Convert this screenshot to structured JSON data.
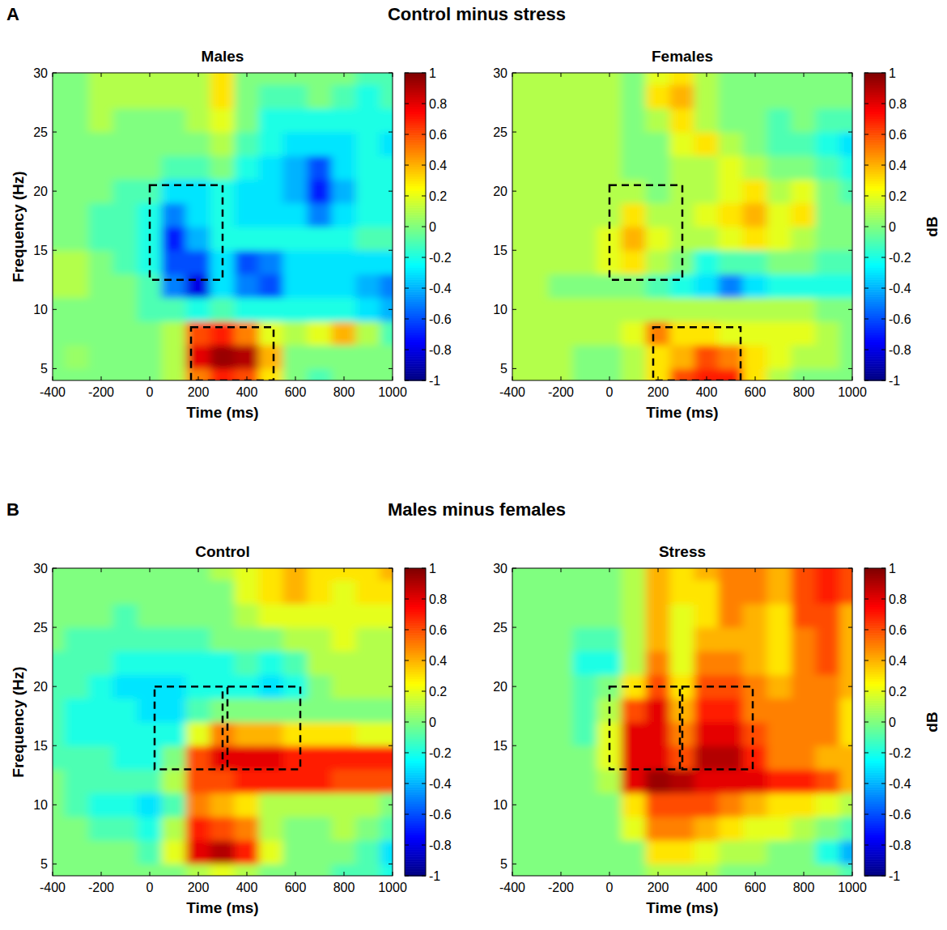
{
  "figure": {
    "rows": [
      {
        "letter": "A",
        "title": "Control minus stress"
      },
      {
        "letter": "B",
        "title": "Males minus females"
      }
    ]
  },
  "chart_data": [
    {
      "type": "heatmap",
      "title": "Males",
      "xlabel": "Time (ms)",
      "ylabel": "Frequency (Hz)",
      "xlim": [
        -400,
        1000
      ],
      "ylim": [
        4,
        30
      ],
      "xticks": [
        -400,
        -200,
        0,
        200,
        400,
        600,
        800,
        1000
      ],
      "yticks": [
        5,
        10,
        15,
        20,
        25,
        30
      ],
      "x": [
        -400,
        -300,
        -200,
        -100,
        0,
        100,
        200,
        300,
        400,
        500,
        600,
        700,
        800,
        900,
        1000
      ],
      "y": [
        4,
        6,
        8,
        10,
        12,
        14,
        16,
        18,
        20,
        22,
        24,
        26,
        28,
        30
      ],
      "z": [
        [
          0,
          0,
          0,
          0,
          0,
          0.1,
          0.5,
          0.7,
          0.6,
          0.3,
          0,
          -0.1,
          0,
          0,
          0
        ],
        [
          0,
          0.05,
          0,
          0,
          0,
          0.1,
          0.8,
          0.95,
          0.9,
          0.4,
          0,
          0,
          0,
          0,
          0
        ],
        [
          0,
          0,
          0,
          0,
          0,
          0.1,
          0.6,
          0.7,
          0.5,
          0.2,
          0.1,
          0.2,
          0.4,
          0.1,
          -0.1
        ],
        [
          0,
          0,
          0,
          0,
          -0.1,
          -0.1,
          -0.2,
          -0.1,
          -0.2,
          -0.2,
          -0.2,
          -0.2,
          -0.2,
          -0.3,
          -0.4
        ],
        [
          0.1,
          0.1,
          0,
          0,
          -0.1,
          -0.5,
          -0.8,
          -0.3,
          -0.5,
          -0.6,
          -0.3,
          -0.3,
          -0.3,
          -0.4,
          -0.5
        ],
        [
          0.1,
          0.1,
          0,
          -0.1,
          -0.2,
          -0.6,
          -0.6,
          -0.3,
          -0.6,
          -0.5,
          -0.3,
          -0.3,
          -0.3,
          -0.3,
          -0.3
        ],
        [
          0,
          0,
          -0.1,
          -0.1,
          -0.2,
          -0.7,
          -0.4,
          -0.2,
          -0.2,
          -0.2,
          -0.2,
          -0.2,
          -0.2,
          -0.1,
          -0.1
        ],
        [
          0,
          0,
          -0.1,
          -0.1,
          -0.2,
          -0.5,
          -0.3,
          -0.2,
          -0.3,
          -0.3,
          -0.3,
          -0.5,
          -0.3,
          -0.2,
          -0.2
        ],
        [
          0,
          0,
          0,
          -0.1,
          -0.1,
          -0.3,
          -0.3,
          -0.2,
          -0.3,
          -0.3,
          -0.4,
          -0.7,
          -0.4,
          -0.2,
          -0.2
        ],
        [
          0,
          0,
          0,
          0,
          0,
          -0.1,
          -0.1,
          0,
          -0.2,
          -0.3,
          -0.4,
          -0.6,
          -0.3,
          -0.2,
          -0.2
        ],
        [
          0,
          0,
          0,
          0,
          0,
          0,
          0,
          0.1,
          -0.1,
          -0.2,
          -0.3,
          -0.3,
          -0.3,
          -0.2,
          -0.3
        ],
        [
          0,
          0,
          0.1,
          0,
          0,
          0,
          0.1,
          0.2,
          0,
          -0.2,
          -0.2,
          -0.2,
          -0.2,
          -0.2,
          -0.2
        ],
        [
          0,
          0,
          0.1,
          0.1,
          0.1,
          0.1,
          0.1,
          0.3,
          0,
          -0.1,
          -0.1,
          0,
          -0.1,
          -0.2,
          -0.1
        ],
        [
          0,
          0,
          0.1,
          0.1,
          0.1,
          0.1,
          0.1,
          0.3,
          0,
          0,
          0,
          0,
          0,
          -0.1,
          -0.1
        ]
      ],
      "rois": [
        {
          "x": [
            0,
            300
          ],
          "y": [
            12.5,
            20.5
          ]
        },
        {
          "x": [
            170,
            510
          ],
          "y": [
            4,
            8.5
          ]
        }
      ],
      "colorbar": {
        "range": [
          -1,
          1
        ],
        "ticks": [
          -1,
          -0.8,
          -0.6,
          -0.4,
          -0.2,
          0,
          0.2,
          0.4,
          0.6,
          0.8,
          1
        ]
      }
    },
    {
      "type": "heatmap",
      "title": "Females",
      "xlabel": "Time (ms)",
      "xlim": [
        -400,
        1000
      ],
      "ylim": [
        4,
        30
      ],
      "xticks": [
        -400,
        -200,
        0,
        200,
        400,
        600,
        800,
        1000
      ],
      "yticks": [
        5,
        10,
        15,
        20,
        25,
        30
      ],
      "x": [
        -400,
        -300,
        -200,
        -100,
        0,
        100,
        200,
        300,
        400,
        500,
        600,
        700,
        800,
        900,
        1000
      ],
      "y": [
        4,
        6,
        8,
        10,
        12,
        14,
        16,
        18,
        20,
        22,
        24,
        26,
        28,
        30
      ],
      "z": [
        [
          0.1,
          0.1,
          0.1,
          0,
          0,
          0.1,
          0.3,
          0.6,
          0.7,
          0.7,
          0.3,
          0.1,
          0,
          0,
          0
        ],
        [
          0.1,
          0.1,
          0.1,
          0,
          0,
          0.1,
          0.3,
          0.4,
          0.6,
          0.5,
          0.3,
          0.2,
          0.1,
          0.1,
          0
        ],
        [
          0.1,
          0.1,
          0.1,
          0.1,
          0.1,
          0.2,
          0.5,
          0.3,
          0.3,
          0.2,
          0.2,
          0.2,
          0.2,
          0.1,
          0
        ],
        [
          0.1,
          0.1,
          0.1,
          0.1,
          0.1,
          0.1,
          0.1,
          0.1,
          0.1,
          0.1,
          0.1,
          0.1,
          0.1,
          0,
          0
        ],
        [
          0.1,
          0.1,
          0,
          0,
          0,
          0,
          -0.1,
          -0.2,
          -0.3,
          -0.5,
          -0.3,
          -0.2,
          -0.2,
          -0.2,
          -0.2
        ],
        [
          0.1,
          0.1,
          0.1,
          0.1,
          0.2,
          0.3,
          0.1,
          0,
          -0.2,
          -0.1,
          -0.1,
          0,
          0,
          -0.1,
          -0.1
        ],
        [
          0.1,
          0.1,
          0.1,
          0.1,
          0.2,
          0.4,
          0.2,
          0.1,
          0.1,
          0.2,
          0.3,
          0.2,
          0.1,
          0,
          0
        ],
        [
          0.1,
          0.1,
          0.1,
          0.1,
          0.1,
          0.3,
          0.1,
          0.1,
          0.2,
          0.3,
          0.4,
          0.2,
          0.3,
          0,
          0
        ],
        [
          0.1,
          0.1,
          0.1,
          0.1,
          0.1,
          0.1,
          0,
          0.1,
          0.1,
          0.2,
          0.3,
          0.1,
          0.2,
          0,
          -0.1
        ],
        [
          0.1,
          0.1,
          0.1,
          0.1,
          0.1,
          0,
          0,
          0.1,
          0.1,
          0.2,
          0.1,
          0,
          0,
          -0.1,
          -0.2
        ],
        [
          0.1,
          0.1,
          0.1,
          0.1,
          0.1,
          0,
          0,
          0.2,
          0.3,
          0.1,
          0,
          -0.1,
          -0.1,
          -0.2,
          -0.3
        ],
        [
          0.1,
          0.1,
          0.1,
          0.1,
          0.1,
          0,
          0.1,
          0.3,
          0.1,
          0,
          0,
          -0.1,
          0,
          -0.1,
          -0.1
        ],
        [
          0.1,
          0.1,
          0.1,
          0.1,
          0.1,
          0,
          0.3,
          0.4,
          0.1,
          0,
          0,
          0,
          0,
          0,
          0
        ],
        [
          0.1,
          0.1,
          0.1,
          0.1,
          0.1,
          0,
          0.2,
          0.3,
          0.1,
          0,
          0,
          0,
          0,
          0,
          0
        ]
      ],
      "rois": [
        {
          "x": [
            0,
            300
          ],
          "y": [
            12.5,
            20.5
          ]
        },
        {
          "x": [
            180,
            540
          ],
          "y": [
            4,
            8.5
          ]
        }
      ],
      "colorbar": {
        "range": [
          -1,
          1
        ],
        "ticks": [
          -1,
          -0.8,
          -0.6,
          -0.4,
          -0.2,
          0,
          0.2,
          0.4,
          0.6,
          0.8,
          1
        ],
        "label": "dB"
      }
    },
    {
      "type": "heatmap",
      "title": "Control",
      "xlabel": "Time (ms)",
      "ylabel": "Frequency (Hz)",
      "xlim": [
        -400,
        1000
      ],
      "ylim": [
        4,
        30
      ],
      "xticks": [
        -400,
        -200,
        0,
        200,
        400,
        600,
        800,
        1000
      ],
      "yticks": [
        5,
        10,
        15,
        20,
        25,
        30
      ],
      "x": [
        -400,
        -300,
        -200,
        -100,
        0,
        100,
        200,
        300,
        400,
        500,
        600,
        700,
        800,
        900,
        1000
      ],
      "y": [
        4,
        6,
        8,
        10,
        12,
        14,
        16,
        18,
        20,
        22,
        24,
        26,
        28,
        30
      ],
      "z": [
        [
          0,
          0,
          0,
          0,
          0,
          0,
          0.1,
          0.2,
          0.1,
          0,
          0,
          0,
          -0.1,
          -0.1,
          -0.2
        ],
        [
          0,
          0,
          0,
          0,
          -0.1,
          0.2,
          0.8,
          0.9,
          0.7,
          0.2,
          0,
          0,
          0,
          -0.1,
          -0.3
        ],
        [
          0,
          0,
          -0.1,
          -0.1,
          -0.2,
          0.1,
          0.7,
          0.6,
          0.5,
          0.1,
          0,
          0,
          0.1,
          0,
          -0.1
        ],
        [
          0,
          -0.1,
          -0.2,
          -0.2,
          -0.3,
          -0.1,
          0.5,
          0.4,
          0.3,
          0.1,
          0.1,
          0.1,
          0.1,
          0.1,
          0
        ],
        [
          0,
          -0.1,
          -0.1,
          -0.1,
          -0.1,
          0.1,
          0.6,
          0.6,
          0.7,
          0.7,
          0.7,
          0.7,
          0.6,
          0.6,
          0.6
        ],
        [
          -0.1,
          -0.1,
          -0.1,
          -0.2,
          -0.2,
          0,
          0.6,
          0.8,
          0.8,
          0.8,
          0.7,
          0.7,
          0.7,
          0.7,
          0.7
        ],
        [
          -0.1,
          -0.2,
          -0.2,
          -0.2,
          -0.2,
          -0.2,
          0.2,
          0.5,
          0.4,
          0.4,
          0.3,
          0.3,
          0.3,
          0.2,
          0.2
        ],
        [
          -0.1,
          -0.2,
          -0.2,
          -0.2,
          -0.3,
          -0.3,
          -0.1,
          0,
          0,
          0,
          0,
          0,
          0,
          0,
          0
        ],
        [
          -0.1,
          -0.1,
          -0.2,
          -0.3,
          -0.3,
          -0.3,
          -0.2,
          -0.2,
          -0.2,
          -0.3,
          -0.2,
          0,
          0.1,
          0.1,
          0.1
        ],
        [
          -0.1,
          -0.1,
          -0.1,
          -0.2,
          -0.2,
          -0.2,
          -0.2,
          -0.2,
          -0.1,
          -0.2,
          -0.1,
          0.1,
          0.1,
          0.1,
          0.1
        ],
        [
          0,
          -0.1,
          -0.1,
          -0.1,
          -0.1,
          -0.1,
          -0.1,
          0,
          0,
          0,
          0.1,
          0.1,
          0.2,
          0.1,
          0.1
        ],
        [
          0,
          0,
          0,
          -0.1,
          0,
          0,
          0,
          0,
          0.1,
          0.2,
          0.2,
          0.2,
          0.2,
          0.2,
          0.2
        ],
        [
          0,
          0,
          0,
          0,
          0,
          0,
          0,
          0,
          0.2,
          0.3,
          0.4,
          0.3,
          0.2,
          0.3,
          0.3
        ],
        [
          0,
          0,
          0,
          0,
          0,
          0,
          0,
          0.1,
          0.2,
          0.3,
          0.4,
          0.3,
          0.3,
          0.3,
          0.4
        ]
      ],
      "rois": [
        {
          "x": [
            20,
            300
          ],
          "y": [
            13,
            20
          ]
        },
        {
          "x": [
            320,
            620
          ],
          "y": [
            13,
            20
          ]
        }
      ],
      "colorbar": {
        "range": [
          -1,
          1
        ],
        "ticks": [
          -1,
          -0.8,
          -0.6,
          -0.4,
          -0.2,
          0,
          0.2,
          0.4,
          0.6,
          0.8,
          1
        ]
      }
    },
    {
      "type": "heatmap",
      "title": "Stress",
      "xlabel": "Time (ms)",
      "xlim": [
        -400,
        1000
      ],
      "ylim": [
        4,
        30
      ],
      "xticks": [
        -400,
        -200,
        0,
        200,
        400,
        600,
        800,
        1000
      ],
      "yticks": [
        5,
        10,
        15,
        20,
        25,
        30
      ],
      "x": [
        -400,
        -300,
        -200,
        -100,
        0,
        100,
        200,
        300,
        400,
        500,
        600,
        700,
        800,
        900,
        1000
      ],
      "y": [
        4,
        6,
        8,
        10,
        12,
        14,
        16,
        18,
        20,
        22,
        24,
        26,
        28,
        30
      ],
      "z": [
        [
          0,
          0,
          0,
          0,
          0,
          0,
          0.1,
          0.1,
          0.1,
          0,
          0,
          0,
          0,
          0,
          -0.1
        ],
        [
          0,
          0,
          0,
          0,
          0,
          0,
          0.3,
          0.3,
          0.2,
          0.1,
          0.1,
          0,
          0,
          -0.2,
          -0.4
        ],
        [
          0,
          0,
          0,
          0,
          0,
          0.2,
          0.5,
          0.5,
          0.4,
          0.3,
          0.2,
          0.2,
          0.1,
          0,
          -0.1
        ],
        [
          0,
          0,
          0,
          0,
          0,
          0.3,
          0.6,
          0.6,
          0.6,
          0.5,
          0.4,
          0.3,
          0.3,
          0.2,
          0.1
        ],
        [
          0,
          0,
          0,
          0,
          0.1,
          0.8,
          0.95,
          0.9,
          0.8,
          0.8,
          0.8,
          0.7,
          0.7,
          0.6,
          0.4
        ],
        [
          0,
          0,
          0,
          0,
          0.2,
          0.8,
          0.8,
          0.6,
          0.9,
          0.9,
          0.7,
          0.5,
          0.5,
          0.4,
          0.4
        ],
        [
          0,
          0,
          0,
          -0.1,
          0.2,
          0.8,
          0.8,
          0.5,
          0.8,
          0.8,
          0.6,
          0.5,
          0.5,
          0.5,
          0.3
        ],
        [
          0,
          0,
          0,
          -0.1,
          0.1,
          0.6,
          0.8,
          0.4,
          0.7,
          0.7,
          0.5,
          0.5,
          0.5,
          0.5,
          0.3
        ],
        [
          0,
          0,
          0,
          -0.1,
          0,
          0.3,
          0.6,
          0.3,
          0.6,
          0.6,
          0.5,
          0.4,
          0.5,
          0.5,
          0.4
        ],
        [
          0,
          0,
          0,
          -0.2,
          -0.2,
          0.1,
          0.5,
          0.2,
          0.5,
          0.5,
          0.4,
          0.3,
          0.5,
          0.6,
          0.4
        ],
        [
          0,
          0,
          0,
          -0.1,
          -0.1,
          0.1,
          0.4,
          0.2,
          0.4,
          0.4,
          0.4,
          0.3,
          0.5,
          0.6,
          0.4
        ],
        [
          0,
          0,
          0,
          0,
          0,
          0.1,
          0.4,
          0.2,
          0.3,
          0.5,
          0.4,
          0.3,
          0.6,
          0.6,
          0.4
        ],
        [
          0,
          0,
          0,
          0,
          0,
          0.1,
          0.4,
          0.3,
          0.3,
          0.5,
          0.5,
          0.4,
          0.6,
          0.7,
          0.6
        ],
        [
          0,
          0,
          0,
          0,
          0,
          0.1,
          0.4,
          0.3,
          0.4,
          0.5,
          0.5,
          0.4,
          0.6,
          0.7,
          0.6
        ]
      ],
      "rois": [
        {
          "x": [
            0,
            290
          ],
          "y": [
            13,
            20
          ]
        },
        {
          "x": [
            300,
            590
          ],
          "y": [
            13,
            20
          ]
        }
      ],
      "colorbar": {
        "range": [
          -1,
          1
        ],
        "ticks": [
          -1,
          -0.8,
          -0.6,
          -0.4,
          -0.2,
          0,
          0.2,
          0.4,
          0.6,
          0.8,
          1
        ],
        "label": "dB"
      }
    }
  ]
}
